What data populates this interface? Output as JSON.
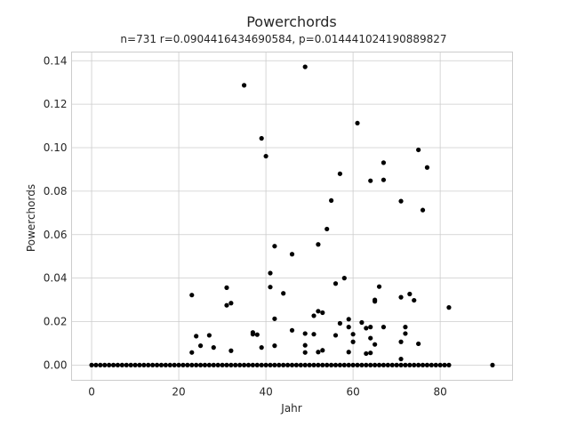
{
  "chart_data": {
    "type": "scatter",
    "title": "Powerchords",
    "subtitle": "n=731 r=0.0904416434690584, p=0.014441024190889827",
    "xlabel": "Jahr",
    "ylabel": "Powerchords",
    "xlim": [
      -4.6,
      96.6
    ],
    "ylim": [
      -0.007,
      0.144
    ],
    "xticks": [
      0,
      20,
      40,
      60,
      80
    ],
    "xtick_labels": [
      "0",
      "20",
      "40",
      "60",
      "80"
    ],
    "yticks": [
      0.0,
      0.02,
      0.04,
      0.06,
      0.08,
      0.1,
      0.12,
      0.14
    ],
    "ytick_labels": [
      "0.00",
      "0.02",
      "0.04",
      "0.06",
      "0.08",
      "0.10",
      "0.12",
      "0.14"
    ],
    "grid": true,
    "point_color": "#000000",
    "zero_x_range": [
      0,
      82
    ],
    "zero_x_extra": [
      92
    ],
    "points": [
      [
        23,
        0.0322
      ],
      [
        23,
        0.0058
      ],
      [
        24,
        0.0133
      ],
      [
        25,
        0.0089
      ],
      [
        27,
        0.0137
      ],
      [
        28,
        0.0081
      ],
      [
        31,
        0.0356
      ],
      [
        31,
        0.0275
      ],
      [
        32,
        0.0285
      ],
      [
        32,
        0.0066
      ],
      [
        35,
        0.1287
      ],
      [
        37,
        0.0142
      ],
      [
        37,
        0.015
      ],
      [
        38,
        0.014
      ],
      [
        39,
        0.1043
      ],
      [
        39,
        0.0081
      ],
      [
        40,
        0.0961
      ],
      [
        41,
        0.0423
      ],
      [
        41,
        0.0359
      ],
      [
        42,
        0.0547
      ],
      [
        42,
        0.0213
      ],
      [
        42,
        0.0089
      ],
      [
        44,
        0.033
      ],
      [
        46,
        0.051
      ],
      [
        46,
        0.016
      ],
      [
        49,
        0.1372
      ],
      [
        49,
        0.0145
      ],
      [
        49,
        0.0091
      ],
      [
        49,
        0.0058
      ],
      [
        51,
        0.0227
      ],
      [
        51,
        0.0142
      ],
      [
        52,
        0.0555
      ],
      [
        52,
        0.0248
      ],
      [
        52,
        0.006
      ],
      [
        53,
        0.0241
      ],
      [
        53,
        0.0068
      ],
      [
        54,
        0.0626
      ],
      [
        55,
        0.0757
      ],
      [
        56,
        0.0375
      ],
      [
        56,
        0.0137
      ],
      [
        57,
        0.088
      ],
      [
        57,
        0.0192
      ],
      [
        58,
        0.04
      ],
      [
        59,
        0.0211
      ],
      [
        59,
        0.0175
      ],
      [
        59,
        0.006
      ],
      [
        60,
        0.0142
      ],
      [
        60,
        0.0107
      ],
      [
        61,
        0.1113
      ],
      [
        62,
        0.0196
      ],
      [
        63,
        0.017
      ],
      [
        63,
        0.0053
      ],
      [
        64,
        0.0848
      ],
      [
        64,
        0.0175
      ],
      [
        64,
        0.0124
      ],
      [
        64,
        0.0056
      ],
      [
        65,
        0.03
      ],
      [
        65,
        0.0293
      ],
      [
        65,
        0.0095
      ],
      [
        66,
        0.0361
      ],
      [
        67,
        0.0931
      ],
      [
        67,
        0.0852
      ],
      [
        67,
        0.0175
      ],
      [
        71,
        0.0754
      ],
      [
        71,
        0.0312
      ],
      [
        71,
        0.0107
      ],
      [
        71,
        0.0028
      ],
      [
        72,
        0.0175
      ],
      [
        72,
        0.0145
      ],
      [
        73,
        0.0327
      ],
      [
        74,
        0.0298
      ],
      [
        75,
        0.099
      ],
      [
        75,
        0.0098
      ],
      [
        76,
        0.0713
      ],
      [
        77,
        0.0909
      ],
      [
        82,
        0.0265
      ]
    ]
  }
}
